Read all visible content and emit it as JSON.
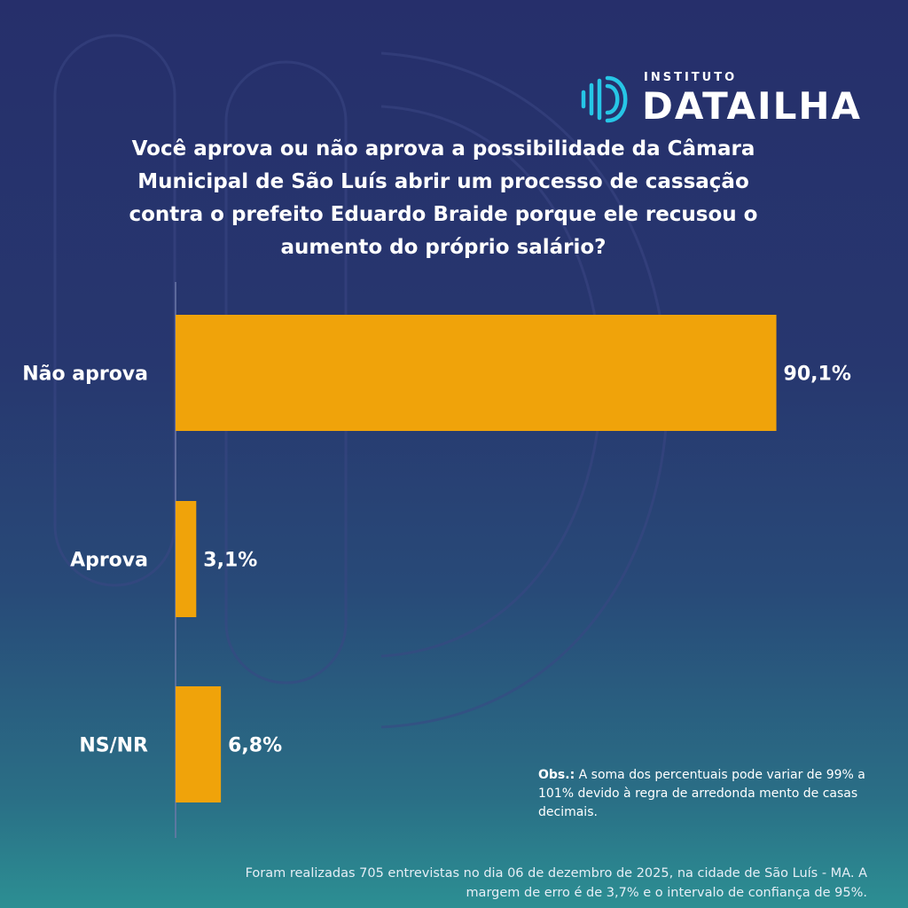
{
  "brand": {
    "small_text": "INSTITUTO",
    "name": "DATAILHA",
    "accent_color": "#26c6e6"
  },
  "question": "Você aprova ou não aprova a possibilidade da Câmara Municipal de São Luís abrir um processo de cassação contra o prefeito Eduardo Braide porque ele recusou o aumento do próprio salário?",
  "chart_data": {
    "type": "bar",
    "orientation": "horizontal",
    "categories": [
      "Não aprova",
      "Aprova",
      "NS/NR"
    ],
    "values": [
      90.1,
      3.1,
      6.8
    ],
    "value_labels": [
      "90,1%",
      "3,1%",
      "6,8%"
    ],
    "unit": "%",
    "xlim": [
      0,
      100
    ],
    "bar_color": "#f0a30a",
    "title": "",
    "xlabel": "",
    "ylabel": ""
  },
  "obs": {
    "label": "Obs.:",
    "text": " A soma dos percentuais pode variar de 99% a 101% devido à regra de arredonda mento de casas decimais."
  },
  "footer": "Foram realizadas 705 entrevistas no dia 06 de dezembro de 2025, na cidade de São Luís - MA. A margem de erro é de 3,7% e o intervalo de confiança de 95%."
}
